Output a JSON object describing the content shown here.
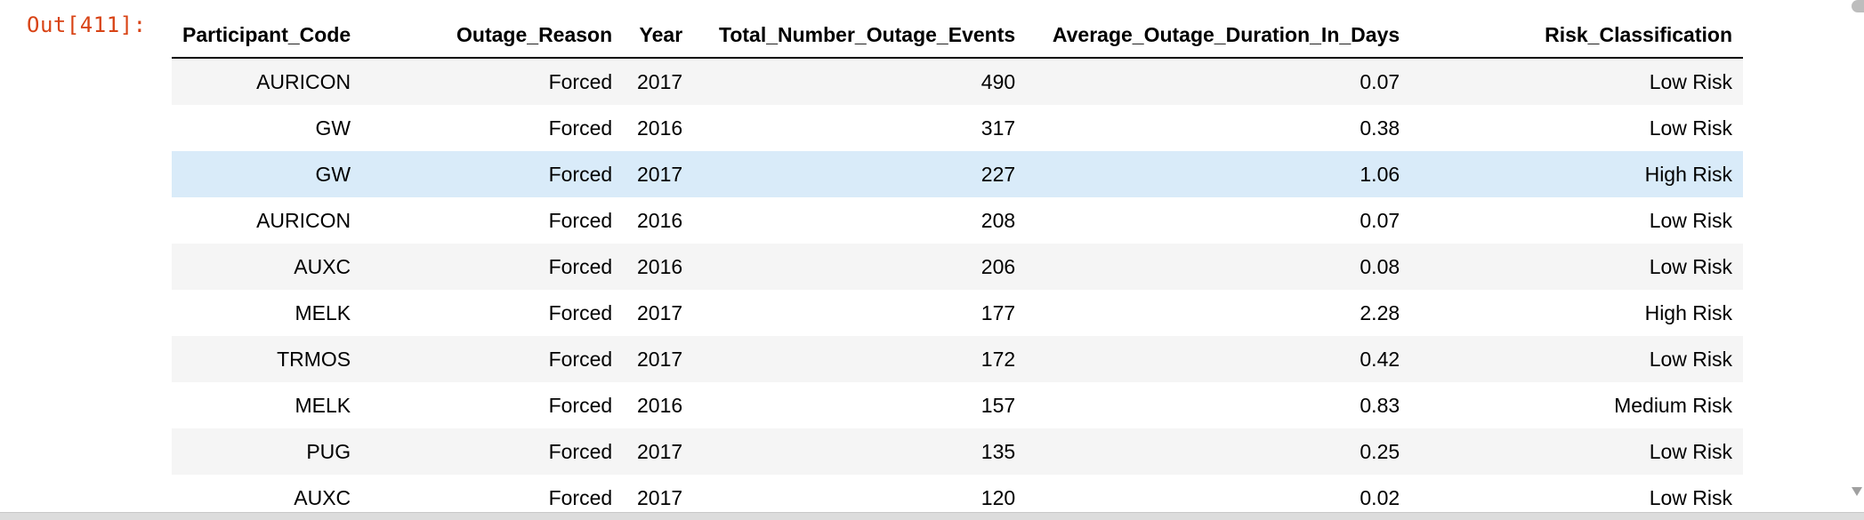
{
  "cell": {
    "prompt_label": "Out[411]:"
  },
  "table": {
    "columns": [
      "Participant_Code",
      "Outage_Reason",
      "Year",
      "Total_Number_Outage_Events",
      "Average_Outage_Duration_In_Days",
      "Risk_Classification"
    ],
    "rows": [
      [
        "AURICON",
        "Forced",
        "2017",
        "490",
        "0.07",
        "Low Risk"
      ],
      [
        "GW",
        "Forced",
        "2016",
        "317",
        "0.38",
        "Low Risk"
      ],
      [
        "GW",
        "Forced",
        "2017",
        "227",
        "1.06",
        "High Risk"
      ],
      [
        "AURICON",
        "Forced",
        "2016",
        "208",
        "0.07",
        "Low Risk"
      ],
      [
        "AUXC",
        "Forced",
        "2016",
        "206",
        "0.08",
        "Low Risk"
      ],
      [
        "MELK",
        "Forced",
        "2017",
        "177",
        "2.28",
        "High Risk"
      ],
      [
        "TRMOS",
        "Forced",
        "2017",
        "172",
        "0.42",
        "Low Risk"
      ],
      [
        "MELK",
        "Forced",
        "2016",
        "157",
        "0.83",
        "Medium Risk"
      ],
      [
        "PUG",
        "Forced",
        "2017",
        "135",
        "0.25",
        "Low Risk"
      ],
      [
        "AUXC",
        "Forced",
        "2017",
        "120",
        "0.02",
        "Low Risk"
      ]
    ],
    "hovered_row_index": 2
  },
  "colors": {
    "prompt": "#d84315",
    "row_stripe": "#f5f5f5",
    "row_hover": "#d9ebf9"
  }
}
